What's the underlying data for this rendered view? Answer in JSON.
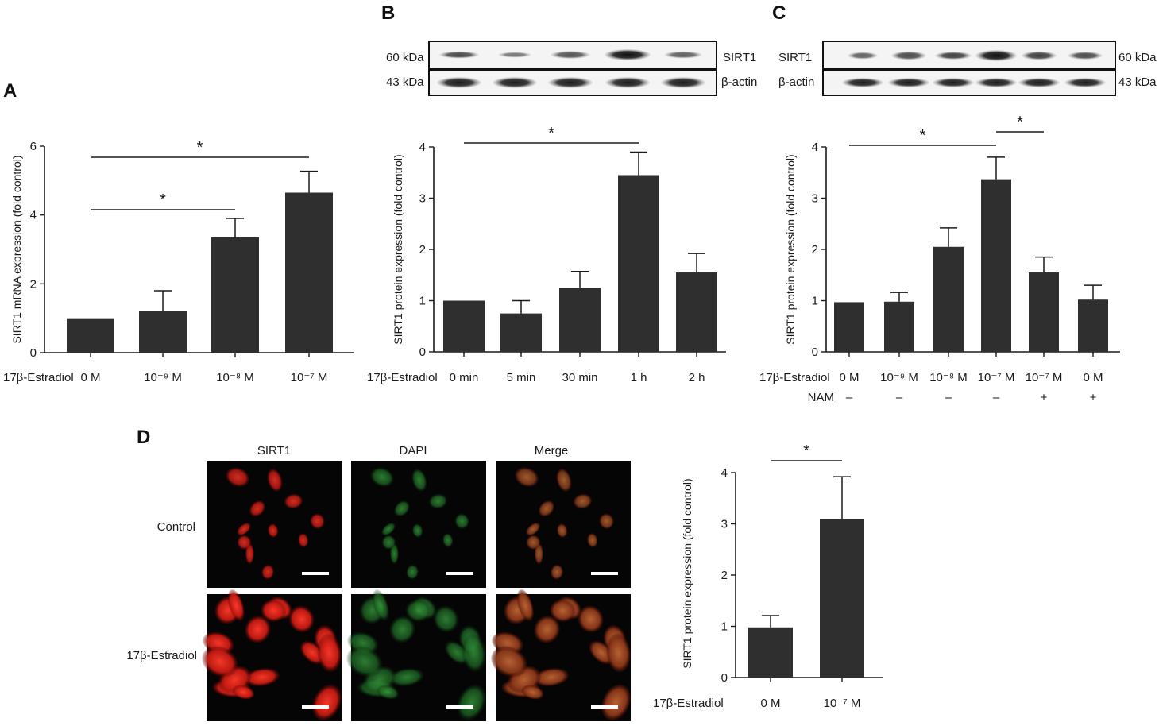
{
  "panels": {
    "A": {
      "letter": "A"
    },
    "B": {
      "letter": "B"
    },
    "C": {
      "letter": "C"
    },
    "D": {
      "letter": "D"
    }
  },
  "blots": {
    "B": {
      "top_left_label": "60 kDa",
      "top_right_label": "SIRT1",
      "bottom_left_label": "43 kDa",
      "bottom_right_label": "β-actin"
    },
    "C": {
      "top_left_label": "SIRT1",
      "top_right_label": "60 kDa",
      "bottom_left_label": "β-actin",
      "bottom_right_label": "43 kDa"
    }
  },
  "microscopy": {
    "columns": [
      "SIRT1",
      "DAPI",
      "Merge"
    ],
    "rows": [
      "Control",
      "17β-Estradiol"
    ]
  },
  "colors": {
    "bar": "#2f2f2f",
    "axis": "#1a1a1a",
    "sirt1_stain": "#d8231c",
    "dapi_stain": "#2f9a3a",
    "background_cell": "#050505"
  },
  "chart_data": [
    {
      "id": "A",
      "type": "bar",
      "ylabel": "SIRT1 mRNA expression (fold control)",
      "group_label": "17β-Estradiol",
      "categories": [
        "0 M",
        "10⁻⁹ M",
        "10⁻⁸ M",
        "10⁻⁷ M"
      ],
      "values": [
        1.0,
        1.2,
        3.35,
        4.65
      ],
      "errors": [
        0,
        0.6,
        0.55,
        0.62
      ],
      "ylim": [
        0,
        6
      ],
      "yticks": [
        0,
        2,
        4,
        6
      ],
      "significance": [
        {
          "from": 0,
          "to": 2,
          "label": "*"
        },
        {
          "from": 0,
          "to": 3,
          "label": "*"
        }
      ]
    },
    {
      "id": "B",
      "type": "bar",
      "ylabel": "SIRT1 protein expression (fold control)",
      "group_label": "17β-Estradiol",
      "categories": [
        "0 min",
        "5 min",
        "30 min",
        "1 h",
        "2 h"
      ],
      "values": [
        1.0,
        0.75,
        1.25,
        3.45,
        1.55
      ],
      "errors": [
        0,
        0.25,
        0.32,
        0.45,
        0.37
      ],
      "ylim": [
        0,
        4
      ],
      "yticks": [
        0,
        1,
        2,
        3,
        4
      ],
      "significance": [
        {
          "from": 0,
          "to": 3,
          "label": "*"
        }
      ]
    },
    {
      "id": "C",
      "type": "bar",
      "ylabel": "SIRT1 protein expression (fold control)",
      "group_label": "17β-Estradiol",
      "second_row_label": "NAM",
      "categories": [
        "0 M",
        "10⁻⁹ M",
        "10⁻⁸ M",
        "10⁻⁷ M",
        "10⁻⁷ M",
        "0 M"
      ],
      "second_row": [
        "–",
        "–",
        "–",
        "–",
        "+",
        "+"
      ],
      "values": [
        0.97,
        0.98,
        2.05,
        3.37,
        1.55,
        1.02
      ],
      "errors": [
        0,
        0.18,
        0.37,
        0.43,
        0.3,
        0.28
      ],
      "ylim": [
        0,
        4
      ],
      "yticks": [
        0,
        1,
        2,
        3,
        4
      ],
      "significance": [
        {
          "from": 0,
          "to": 3,
          "label": "*"
        },
        {
          "from": 3,
          "to": 4,
          "label": "*"
        }
      ]
    },
    {
      "id": "D",
      "type": "bar",
      "ylabel": "SIRT1 protein expression (fold control)",
      "group_label": "17β-Estradiol",
      "categories": [
        "0 M",
        "10⁻⁷ M"
      ],
      "values": [
        0.98,
        3.1
      ],
      "errors": [
        0.23,
        0.82
      ],
      "ylim": [
        0,
        4
      ],
      "yticks": [
        0,
        1,
        2,
        3,
        4
      ],
      "significance": [
        {
          "from": 0,
          "to": 1,
          "label": "*"
        }
      ]
    }
  ]
}
